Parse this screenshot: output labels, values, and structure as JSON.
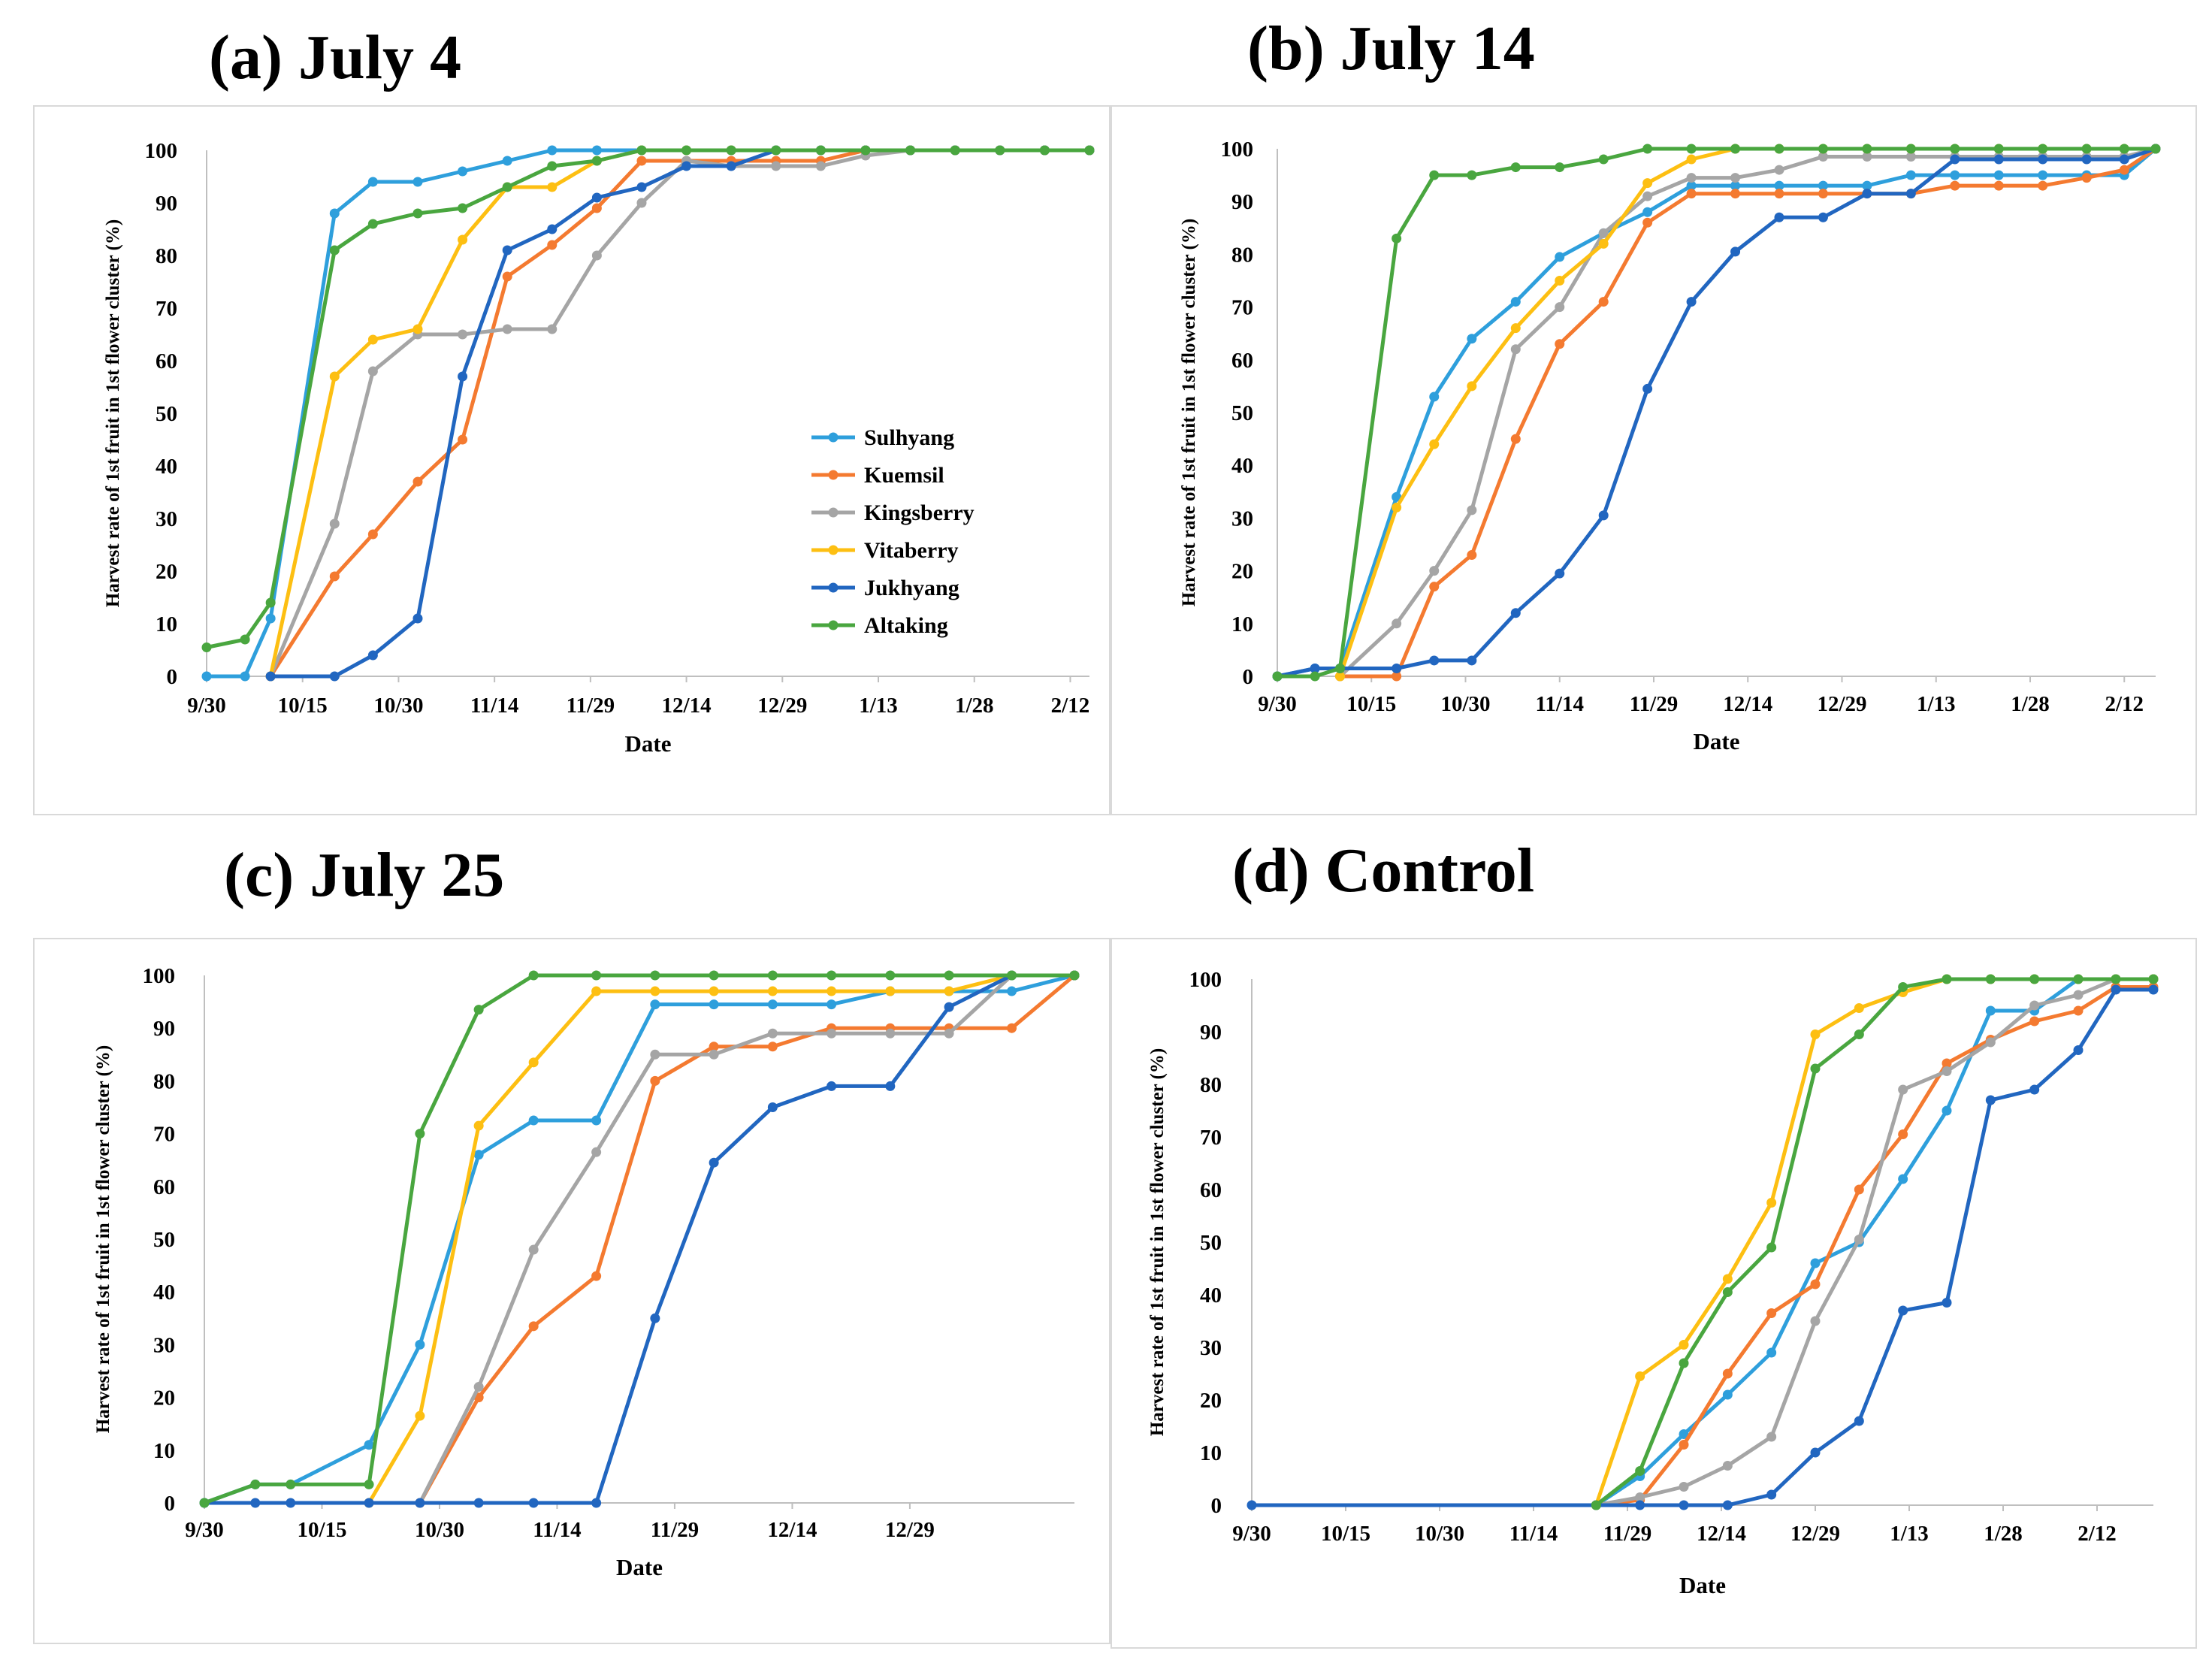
{
  "figure": {
    "panel_titles": [
      "(a) July 4",
      "(b) July 14",
      "(c) July 25",
      "(d) Control"
    ]
  },
  "chart_data": [
    {
      "type": "line",
      "title": "(a) July 4",
      "xlabel": "Date",
      "ylabel": "Harvest rate of 1st fruit in 1st flower cluster (%)",
      "xlim": [
        0,
        138
      ],
      "ylim": [
        0,
        100
      ],
      "xticks": [
        {
          "day": 0,
          "label": "9/30"
        },
        {
          "day": 15,
          "label": "10/15"
        },
        {
          "day": 30,
          "label": "10/30"
        },
        {
          "day": 45,
          "label": "11/14"
        },
        {
          "day": 60,
          "label": "11/29"
        },
        {
          "day": 75,
          "label": "12/14"
        },
        {
          "day": 90,
          "label": "12/29"
        },
        {
          "day": 105,
          "label": "1/13"
        },
        {
          "day": 120,
          "label": "1/28"
        },
        {
          "day": 135,
          "label": "2/12"
        }
      ],
      "yticks": [
        0,
        10,
        20,
        30,
        40,
        50,
        60,
        70,
        80,
        90,
        100
      ],
      "legend": {
        "position": "inside-right"
      },
      "x": [
        0,
        6,
        10,
        20,
        26,
        33,
        40,
        47,
        54,
        61,
        68,
        75,
        82,
        89,
        96,
        103,
        110,
        117,
        124,
        131,
        138
      ],
      "series": [
        {
          "name": "Sulhyang",
          "color": "#2e9fdc",
          "values": [
            0,
            0,
            11,
            88,
            94,
            94,
            96,
            98,
            100,
            100,
            100,
            100,
            100,
            100,
            100,
            100,
            100,
            100,
            100,
            100,
            100
          ]
        },
        {
          "name": "Kuemsil",
          "color": "#f47a30",
          "values": [
            null,
            null,
            0,
            19,
            27,
            37,
            45,
            76,
            82,
            89,
            98,
            98,
            98,
            98,
            98,
            100,
            100,
            100,
            100,
            100,
            100
          ]
        },
        {
          "name": "Kingsberry",
          "color": "#a5a5a5",
          "values": [
            null,
            null,
            0,
            29,
            58,
            65,
            65,
            66,
            66,
            80,
            90,
            98,
            97,
            97,
            97,
            99,
            100,
            100,
            100,
            100,
            100
          ]
        },
        {
          "name": "Vitaberry",
          "color": "#fdbf12",
          "values": [
            null,
            null,
            0,
            57,
            64,
            66,
            83,
            93,
            93,
            98,
            100,
            100,
            100,
            100,
            100,
            100,
            100,
            100,
            100,
            100,
            100
          ]
        },
        {
          "name": "Jukhyang",
          "color": "#2166c0",
          "values": [
            null,
            null,
            0,
            0,
            4,
            11,
            57,
            81,
            85,
            91,
            93,
            97,
            97,
            100,
            100,
            100,
            100,
            100,
            100,
            100,
            100
          ]
        },
        {
          "name": "Altaking",
          "color": "#49a63f",
          "values": [
            5.5,
            7,
            14,
            81,
            86,
            88,
            89,
            93,
            97,
            98,
            100,
            100,
            100,
            100,
            100,
            100,
            100,
            100,
            100,
            100,
            100
          ]
        }
      ]
    },
    {
      "type": "line",
      "title": "(b) July 14",
      "xlabel": "Date",
      "ylabel": "Harvest rate of 1st fruit in 1st flower cluster (%)",
      "xlim": [
        0,
        140
      ],
      "ylim": [
        0,
        100
      ],
      "xticks": [
        {
          "day": 0,
          "label": "9/30"
        },
        {
          "day": 15,
          "label": "10/15"
        },
        {
          "day": 30,
          "label": "10/30"
        },
        {
          "day": 45,
          "label": "11/14"
        },
        {
          "day": 60,
          "label": "11/29"
        },
        {
          "day": 75,
          "label": "12/14"
        },
        {
          "day": 90,
          "label": "12/29"
        },
        {
          "day": 105,
          "label": "1/13"
        },
        {
          "day": 120,
          "label": "1/28"
        },
        {
          "day": 135,
          "label": "2/12"
        }
      ],
      "yticks": [
        0,
        10,
        20,
        30,
        40,
        50,
        60,
        70,
        80,
        90,
        100
      ],
      "x": [
        0,
        6,
        10,
        19,
        25,
        31,
        38,
        45,
        52,
        59,
        66,
        73,
        80,
        87,
        94,
        101,
        108,
        115,
        122,
        129,
        135,
        140
      ],
      "series": [
        {
          "name": "Sulhyang",
          "color": "#2e9fdc",
          "values": [
            0,
            1.5,
            1.5,
            34,
            53,
            64,
            71,
            79.5,
            84,
            88,
            93,
            93,
            93,
            93,
            93,
            95,
            95,
            95,
            95,
            95,
            95,
            100
          ]
        },
        {
          "name": "Kuemsil",
          "color": "#f47a30",
          "values": [
            null,
            null,
            0,
            0,
            17,
            23,
            45,
            63,
            71,
            86,
            91.5,
            91.5,
            91.5,
            91.5,
            91.5,
            91.5,
            93,
            93,
            93,
            94.5,
            96,
            100
          ]
        },
        {
          "name": "Kingsberry",
          "color": "#a5a5a5",
          "values": [
            null,
            null,
            0,
            10,
            20,
            31.5,
            62,
            70,
            84,
            91,
            94.5,
            94.5,
            96,
            98.5,
            98.5,
            98.5,
            98.5,
            98.5,
            98.5,
            98.5,
            98.5,
            100
          ]
        },
        {
          "name": "Vitaberry",
          "color": "#fdbf12",
          "values": [
            null,
            null,
            0,
            32,
            44,
            55,
            66,
            75,
            82,
            93.5,
            98,
            100,
            100,
            100,
            100,
            100,
            100,
            100,
            100,
            100,
            100,
            100
          ]
        },
        {
          "name": "Jukhyang",
          "color": "#2166c0",
          "values": [
            0,
            1.5,
            1.5,
            1.5,
            3,
            3,
            12,
            19.5,
            30.5,
            54.5,
            71,
            80.5,
            87,
            87,
            91.5,
            91.5,
            98,
            98,
            98,
            98,
            98,
            100
          ]
        },
        {
          "name": "Altaking",
          "color": "#49a63f",
          "values": [
            0,
            0,
            1.5,
            83,
            95,
            95,
            96.5,
            96.5,
            98,
            100,
            100,
            100,
            100,
            100,
            100,
            100,
            100,
            100,
            100,
            100,
            100,
            100
          ]
        }
      ]
    },
    {
      "type": "line",
      "title": "(c) July 25",
      "xlabel": "Date",
      "ylabel": "Harvest rate of 1st fruit in 1st flower cluster (%)",
      "xlim": [
        0,
        111
      ],
      "ylim": [
        0,
        100
      ],
      "xticks": [
        {
          "day": 0,
          "label": "9/30"
        },
        {
          "day": 15,
          "label": "10/15"
        },
        {
          "day": 30,
          "label": "10/30"
        },
        {
          "day": 45,
          "label": "11/14"
        },
        {
          "day": 60,
          "label": "11/29"
        },
        {
          "day": 75,
          "label": "12/14"
        },
        {
          "day": 90,
          "label": "12/29"
        }
      ],
      "yticks": [
        0,
        10,
        20,
        30,
        40,
        50,
        60,
        70,
        80,
        90,
        100
      ],
      "x": [
        0,
        6.5,
        11,
        21,
        27.5,
        35,
        42,
        50,
        57.5,
        65,
        72.5,
        80,
        87.5,
        95,
        103,
        111
      ],
      "series": [
        {
          "name": "Sulhyang",
          "color": "#2e9fdc",
          "values": [
            0,
            3.5,
            3.5,
            11,
            30,
            66,
            72.5,
            72.5,
            94.5,
            94.5,
            94.5,
            94.5,
            97,
            97,
            97,
            100
          ]
        },
        {
          "name": "Kuemsil",
          "color": "#f47a30",
          "values": [
            null,
            null,
            null,
            null,
            0,
            20,
            33.5,
            43,
            80,
            86.5,
            86.5,
            90,
            90,
            90,
            90,
            100
          ]
        },
        {
          "name": "Kingsberry",
          "color": "#a5a5a5",
          "values": [
            null,
            null,
            null,
            null,
            0,
            22,
            48,
            66.5,
            85,
            85,
            89,
            89,
            89,
            89,
            100,
            100
          ]
        },
        {
          "name": "Vitaberry",
          "color": "#fdbf12",
          "values": [
            null,
            null,
            null,
            0,
            16.5,
            71.5,
            83.5,
            97,
            97,
            97,
            97,
            97,
            97,
            97,
            100,
            100
          ]
        },
        {
          "name": "Jukhyang",
          "color": "#2166c0",
          "values": [
            0,
            0,
            0,
            0,
            0,
            0,
            0,
            0,
            35,
            64.5,
            75,
            79,
            79,
            94,
            100,
            100
          ]
        },
        {
          "name": "Altaking",
          "color": "#49a63f",
          "values": [
            0,
            3.5,
            3.5,
            3.5,
            70,
            93.5,
            100,
            100,
            100,
            100,
            100,
            100,
            100,
            100,
            100,
            100
          ]
        }
      ]
    },
    {
      "type": "line",
      "title": "(d) Control",
      "xlabel": "Date",
      "ylabel": "Harvest rate of 1st fruit in 1st flower cluster (%)",
      "xlim": [
        0,
        144
      ],
      "ylim": [
        0,
        100
      ],
      "xticks": [
        {
          "day": 0,
          "label": "9/30"
        },
        {
          "day": 15,
          "label": "10/15"
        },
        {
          "day": 30,
          "label": "10/30"
        },
        {
          "day": 45,
          "label": "11/14"
        },
        {
          "day": 60,
          "label": "11/29"
        },
        {
          "day": 75,
          "label": "12/14"
        },
        {
          "day": 90,
          "label": "12/29"
        },
        {
          "day": 105,
          "label": "1/13"
        },
        {
          "day": 120,
          "label": "1/28"
        },
        {
          "day": 135,
          "label": "2/12"
        }
      ],
      "yticks": [
        0,
        10,
        20,
        30,
        40,
        50,
        60,
        70,
        80,
        90,
        100
      ],
      "x": [
        0,
        55,
        62,
        69,
        76,
        83,
        90,
        97,
        104,
        111,
        118,
        125,
        132,
        138,
        144
      ],
      "series": [
        {
          "name": "Sulhyang",
          "color": "#2e9fdc",
          "values": [
            null,
            0,
            5.5,
            13.5,
            21,
            29,
            46,
            50,
            62,
            75,
            94,
            94,
            100,
            100,
            100
          ]
        },
        {
          "name": "Kuemsil",
          "color": "#f47a30",
          "values": [
            null,
            0,
            1,
            11.5,
            25,
            36.5,
            42,
            60,
            70.5,
            84,
            88.5,
            92,
            94,
            98.5,
            98.5
          ]
        },
        {
          "name": "Kingsberry",
          "color": "#a5a5a5",
          "values": [
            null,
            0,
            1.5,
            3.5,
            7.5,
            13,
            35,
            50.5,
            79,
            82.5,
            88,
            95,
            97,
            100,
            100
          ]
        },
        {
          "name": "Vitaberry",
          "color": "#fdbf12",
          "values": [
            null,
            0,
            24.5,
            30.5,
            43,
            57.5,
            89.5,
            94.5,
            97.5,
            100,
            100,
            100,
            100,
            100,
            100
          ]
        },
        {
          "name": "Jukhyang",
          "color": "#2166c0",
          "values": [
            0,
            0,
            0,
            0,
            0,
            2,
            10,
            16,
            37,
            38.5,
            77,
            79,
            86.5,
            98,
            98
          ]
        },
        {
          "name": "Altaking",
          "color": "#49a63f",
          "values": [
            null,
            0,
            6.5,
            27,
            40.5,
            49,
            83,
            89.5,
            98.5,
            100,
            100,
            100,
            100,
            100,
            100
          ]
        }
      ]
    }
  ]
}
